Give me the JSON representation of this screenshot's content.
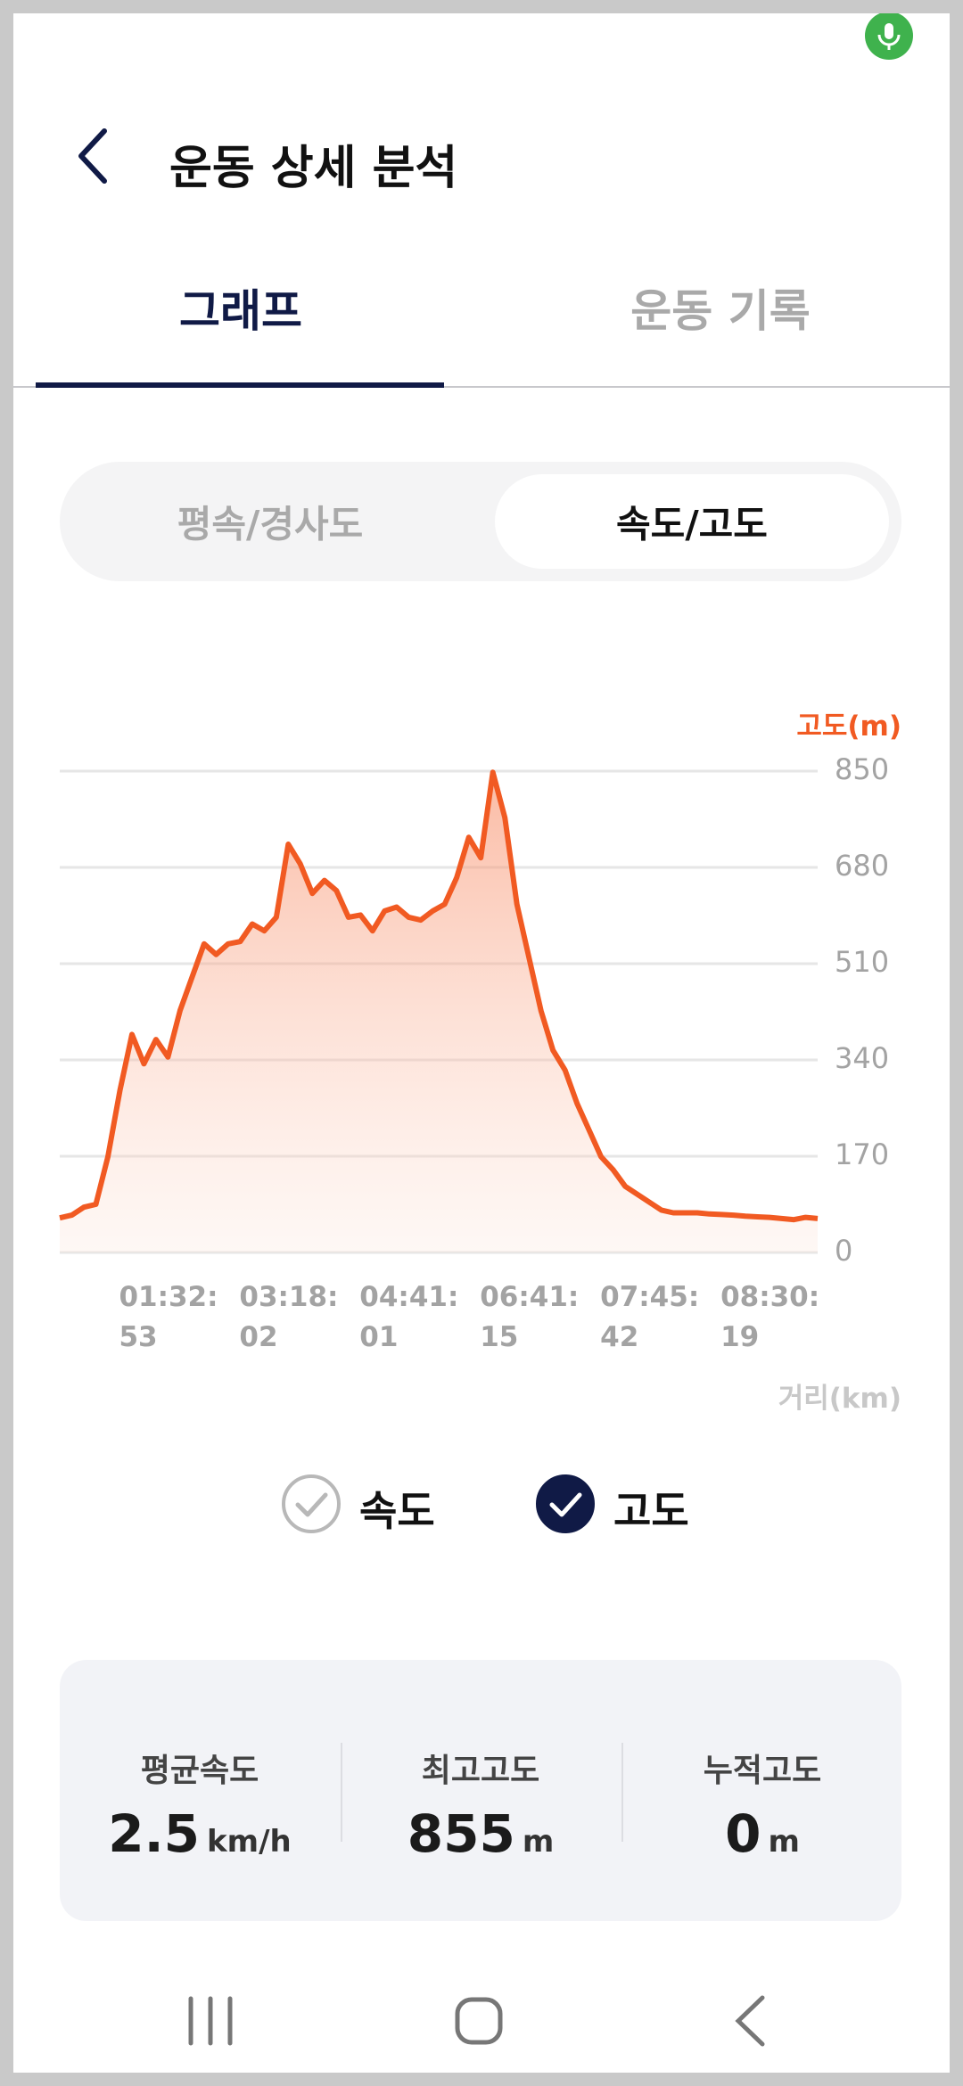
{
  "header": {
    "title": "운동 상세 분석"
  },
  "tabs": [
    {
      "label": "그래프",
      "active": true
    },
    {
      "label": "운동 기록",
      "active": false
    }
  ],
  "segments": [
    {
      "label": "평속/경사도",
      "active": false
    },
    {
      "label": "속도/고도",
      "active": true
    }
  ],
  "chart_data": {
    "type": "area",
    "y_label": "고도(m)",
    "x_label": "거리(km)",
    "categories": [
      null,
      null,
      null,
      null,
      null,
      "01:32:53",
      null,
      null,
      null,
      null,
      null,
      null,
      null,
      null,
      null,
      "03:18:02",
      null,
      null,
      null,
      null,
      null,
      null,
      null,
      null,
      null,
      "04:41:01",
      null,
      null,
      null,
      null,
      null,
      null,
      null,
      null,
      null,
      "06:41:15",
      null,
      null,
      null,
      null,
      null,
      null,
      null,
      null,
      null,
      "07:45:42",
      null,
      null,
      null,
      null,
      null,
      null,
      null,
      null,
      null,
      "08:30:19",
      null,
      null,
      null,
      null,
      null,
      null,
      null,
      null
    ],
    "series": [
      {
        "color": "#f15a22",
        "values": [
          61,
          66,
          80,
          85,
          169,
          286,
          385,
          333,
          376,
          345,
          427,
          486,
          545,
          526,
          545,
          549,
          580,
          568,
          592,
          721,
          686,
          634,
          657,
          639,
          592,
          596,
          568,
          603,
          610,
          592,
          587,
          603,
          615,
          662,
          733,
          697,
          848,
          768,
          615,
          521,
          427,
          357,
          322,
          263,
          216,
          169,
          146,
          117,
          103,
          89,
          75,
          70,
          70,
          70,
          68,
          67,
          66,
          64,
          63,
          62,
          60,
          58,
          62,
          60
        ]
      }
    ],
    "ylim": [
      0,
      850
    ],
    "yticks": [
      0,
      170,
      340,
      510,
      680,
      850
    ],
    "grid": true,
    "toggles": [
      {
        "label": "속도",
        "checked": false
      },
      {
        "label": "고도",
        "checked": true
      }
    ]
  },
  "stats": [
    {
      "label": "평균속도",
      "value": 2.5,
      "unit": "km/h"
    },
    {
      "label": "최고고도",
      "value": 855,
      "unit": "m"
    },
    {
      "label": "누적고도",
      "value": 0,
      "unit": "m"
    }
  ]
}
